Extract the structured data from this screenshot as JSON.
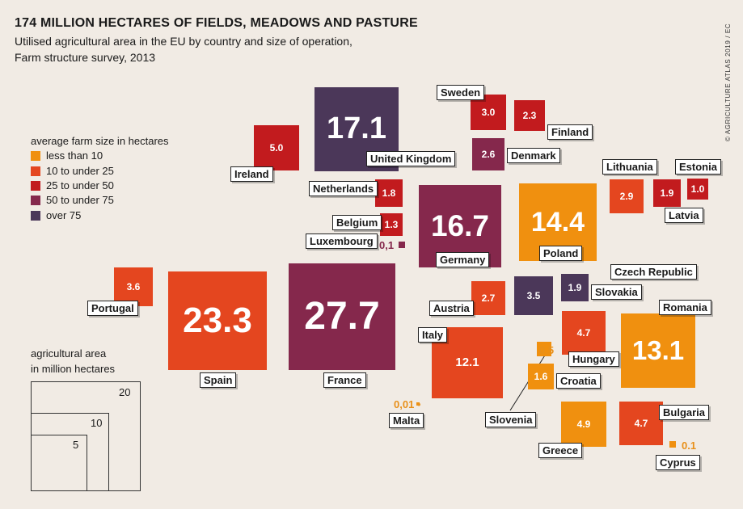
{
  "title": "174 MILLION  HECTARES OF FIELDS, MEADOWS AND PASTURE",
  "subtitle_1": "Utilised agricultural  area in the EU by country and size of operation,",
  "subtitle_2": "Farm structure survey, 2013",
  "credit": "© AGRICULTURE ATLAS 2019 / EC",
  "legend": {
    "title": "average farm size in hectares",
    "items": [
      {
        "label": "less than 10",
        "color": "#f0900f"
      },
      {
        "label": "10 to under 25",
        "color": "#e4461f"
      },
      {
        "label": "25 to under 50",
        "color": "#c21b1e"
      },
      {
        "label": "50 to under 75",
        "color": "#85284c"
      },
      {
        "label": "over 75",
        "color": "#4b3759"
      }
    ]
  },
  "size_legend": {
    "title_1": "agricultural  area",
    "title_2": "in million hectares",
    "values": [
      "20",
      "10",
      "5"
    ]
  },
  "chart_data": {
    "type": "proportional-squares",
    "unit": "million hectares",
    "countries": [
      {
        "name": "France",
        "value": 27.7,
        "value_label": "27.7",
        "size_class": "50 to under 75"
      },
      {
        "name": "Spain",
        "value": 23.3,
        "value_label": "23.3",
        "size_class": "10 to under 25"
      },
      {
        "name": "United Kingdom",
        "value": 17.1,
        "value_label": "17.1",
        "size_class": "over 75"
      },
      {
        "name": "Germany",
        "value": 16.7,
        "value_label": "16.7",
        "size_class": "50 to under 75"
      },
      {
        "name": "Poland",
        "value": 14.4,
        "value_label": "14.4",
        "size_class": "less than 10"
      },
      {
        "name": "Romania",
        "value": 13.1,
        "value_label": "13.1",
        "size_class": "less than 10"
      },
      {
        "name": "Italy",
        "value": 12.1,
        "value_label": "12.1",
        "size_class": "10 to under 25"
      },
      {
        "name": "Ireland",
        "value": 5.0,
        "value_label": "5.0",
        "size_class": "25 to under 50"
      },
      {
        "name": "Greece",
        "value": 4.9,
        "value_label": "4.9",
        "size_class": "less than 10"
      },
      {
        "name": "Hungary",
        "value": 4.7,
        "value_label": "4.7",
        "size_class": "10 to under 25"
      },
      {
        "name": "Bulgaria",
        "value": 4.7,
        "value_label": "4.7",
        "size_class": "10 to under 25"
      },
      {
        "name": "Portugal",
        "value": 3.6,
        "value_label": "3.6",
        "size_class": "10 to under 25"
      },
      {
        "name": "Czech Republic",
        "value": 3.5,
        "value_label": "3.5",
        "size_class": "over 75"
      },
      {
        "name": "Sweden",
        "value": 3.0,
        "value_label": "3.0",
        "size_class": "25 to under 50"
      },
      {
        "name": "Lithuania",
        "value": 2.9,
        "value_label": "2.9",
        "size_class": "10 to under 25"
      },
      {
        "name": "Austria",
        "value": 2.7,
        "value_label": "2.7",
        "size_class": "10 to under 25"
      },
      {
        "name": "Denmark",
        "value": 2.6,
        "value_label": "2.6",
        "size_class": "50 to under 75"
      },
      {
        "name": "Finland",
        "value": 2.3,
        "value_label": "2.3",
        "size_class": "25 to under 50"
      },
      {
        "name": "Slovakia",
        "value": 1.9,
        "value_label": "1.9",
        "size_class": "over 75"
      },
      {
        "name": "Latvia",
        "value": 1.9,
        "value_label": "1.9",
        "size_class": "25 to under 50"
      },
      {
        "name": "Netherlands",
        "value": 1.8,
        "value_label": "1.8",
        "size_class": "25 to under 50"
      },
      {
        "name": "Croatia",
        "value": 1.6,
        "value_label": "1.6",
        "size_class": "less than 10"
      },
      {
        "name": "Belgium",
        "value": 1.3,
        "value_label": "1.3",
        "size_class": "25 to under 50"
      },
      {
        "name": "Estonia",
        "value": 1.0,
        "value_label": "1.0",
        "size_class": "25 to under 50"
      },
      {
        "name": "Slovenia",
        "value": 0.5,
        "value_label": "0.5",
        "size_class": "less than 10"
      },
      {
        "name": "Luxembourg",
        "value": 0.1,
        "value_label": "0,1",
        "size_class": "50 to under 75"
      },
      {
        "name": "Cyprus",
        "value": 0.1,
        "value_label": "0.1",
        "size_class": "less than 10"
      },
      {
        "name": "Malta",
        "value": 0.01,
        "value_label": "0,01",
        "size_class": "less than 10"
      }
    ]
  }
}
